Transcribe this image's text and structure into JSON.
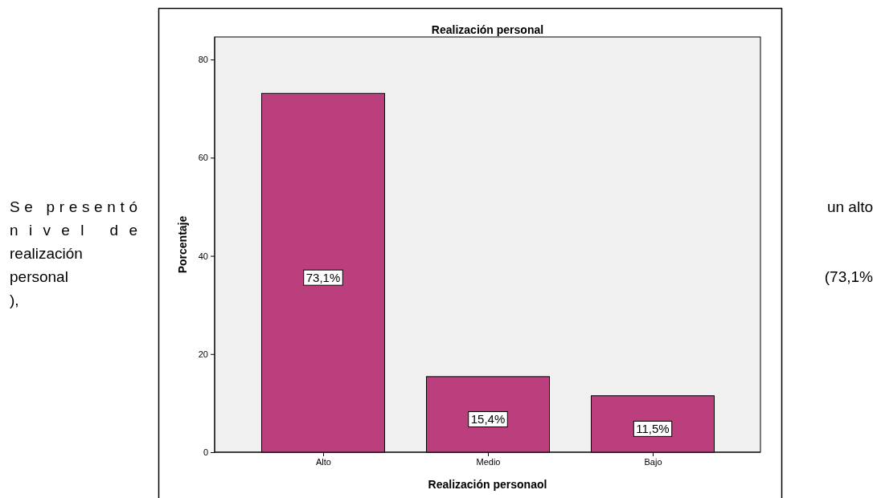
{
  "chart_data": {
    "type": "bar",
    "title": "Realización personal",
    "xlabel": "Realización personaol",
    "ylabel": "Porcentaje",
    "categories": [
      "Alto",
      "Medio",
      "Bajo"
    ],
    "values": [
      73.1,
      15.4,
      11.5
    ],
    "value_labels": [
      "73,1%",
      "15,4%",
      "11,5%"
    ],
    "color": "#bb3f7d",
    "ylim": [
      0,
      84.6
    ],
    "yticks": [
      0,
      20,
      40,
      60,
      80
    ],
    "grid": false,
    "annotations": [
      "Se presentó",
      "un alto",
      "nivel de",
      "realización",
      "personal",
      "(73,1%",
      "),"
    ]
  }
}
